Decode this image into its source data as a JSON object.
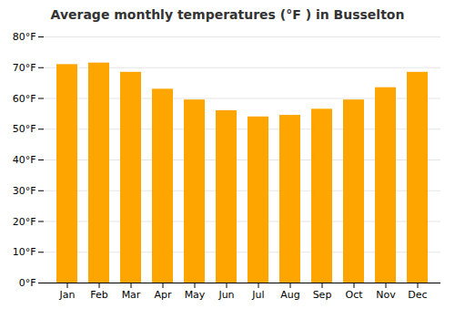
{
  "chart_data": {
    "type": "bar",
    "title": "Average monthly temperatures (°F ) in Busselton",
    "categories": [
      "Jan",
      "Feb",
      "Mar",
      "Apr",
      "May",
      "Jun",
      "Jul",
      "Aug",
      "Sep",
      "Oct",
      "Nov",
      "Dec"
    ],
    "values": [
      71,
      71.5,
      68.5,
      63,
      59.5,
      56,
      54,
      54.5,
      56.5,
      59.5,
      63.5,
      68.5
    ],
    "color": "#FFA500",
    "ylim": [
      0,
      80
    ],
    "yticks": [
      {
        "value": 0,
        "label": "0°F"
      },
      {
        "value": 10,
        "label": "10°F"
      },
      {
        "value": 20,
        "label": "20°F"
      },
      {
        "value": 30,
        "label": "30°F"
      },
      {
        "value": 40,
        "label": "40°F"
      },
      {
        "value": 50,
        "label": "50°F"
      },
      {
        "value": 60,
        "label": "60°F"
      },
      {
        "value": 70,
        "label": "70°F"
      },
      {
        "value": 80,
        "label": "80°F"
      }
    ],
    "grid": true
  }
}
